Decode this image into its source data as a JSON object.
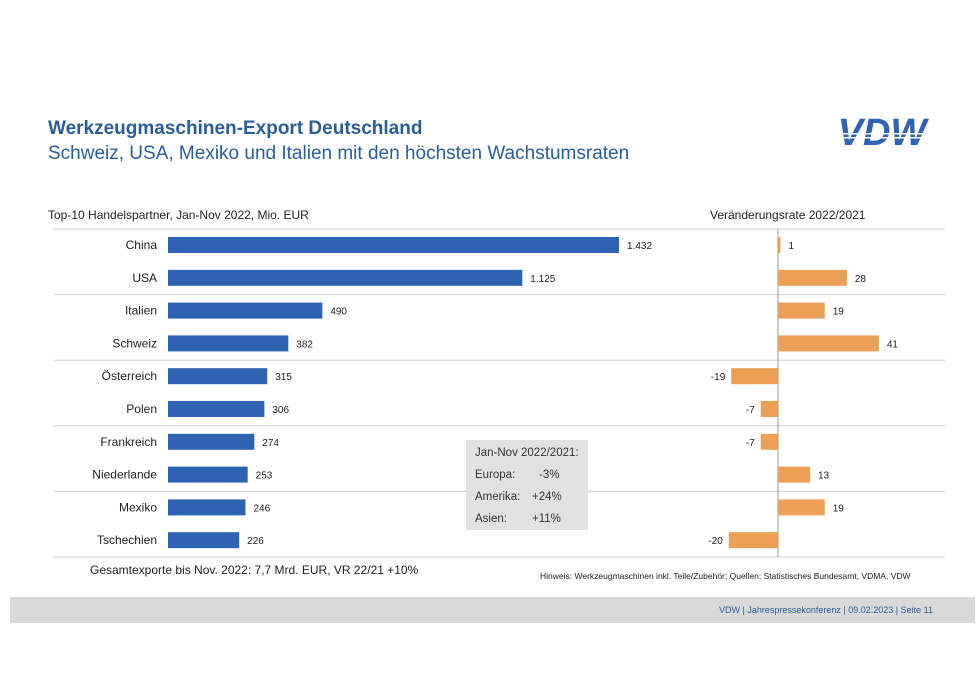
{
  "header": {
    "title": "Werkzeugmaschinen-Export Deutschland",
    "subtitle": "Schweiz, USA, Mexiko und Italien mit den höchsten Wachstumsraten",
    "logo_text": "VDW"
  },
  "colors": {
    "title": "#2a5d9a",
    "bar_blue": "#2e62b3",
    "bar_orange": "#eba055",
    "footer_bg": "#d9d9d9",
    "infobox_bg": "#e2e2e2"
  },
  "chart_data": [
    {
      "type": "bar",
      "orientation": "horizontal",
      "title": "Top-10 Handelspartner, Jan-Nov 2022, Mio. EUR",
      "categories": [
        "China",
        "USA",
        "Italien",
        "Schweiz",
        "Österreich",
        "Polen",
        "Frankreich",
        "Niederlande",
        "Mexiko",
        "Tschechien"
      ],
      "values": [
        1432,
        1125,
        490,
        382,
        315,
        306,
        274,
        253,
        246,
        226
      ],
      "value_labels": [
        "1.432",
        "1.125",
        "490",
        "382",
        "315",
        "306",
        "274",
        "253",
        "246",
        "226"
      ],
      "xlim": [
        0,
        1432
      ],
      "grid": false
    },
    {
      "type": "bar",
      "orientation": "horizontal",
      "title": "Veränderungsrate 2022/2021",
      "categories": [
        "China",
        "USA",
        "Italien",
        "Schweiz",
        "Österreich",
        "Polen",
        "Frankreich",
        "Niederlande",
        "Mexiko",
        "Tschechien"
      ],
      "values": [
        1,
        28,
        19,
        41,
        -19,
        -7,
        -7,
        13,
        19,
        -20
      ],
      "value_labels": [
        "1",
        "28",
        "19",
        "41",
        "-19",
        "-7",
        "-7",
        "13",
        "19",
        "-20"
      ],
      "unit": "%",
      "grid": false
    }
  ],
  "infobox": {
    "heading": "Jan-Nov 2022/2021:",
    "rows": [
      {
        "label": "Europa:",
        "value": "-3%"
      },
      {
        "label": "Amerika:",
        "value": "+24%"
      },
      {
        "label": "Asien:",
        "value": "+11%"
      }
    ]
  },
  "footnotes": {
    "total": "Gesamtexporte bis Nov. 2022: 7,7 Mrd. EUR, VR 22/21 +10%",
    "note": "Hinweis: Werkzeugmaschinen inkl. Teile/Zubehör;  Quellen: Statistisches Bundesamt, VDMA, VDW"
  },
  "footer": {
    "text": "VDW  |  Jahrespressekonferenz  |   09.02.2023    |  Seite  11"
  }
}
